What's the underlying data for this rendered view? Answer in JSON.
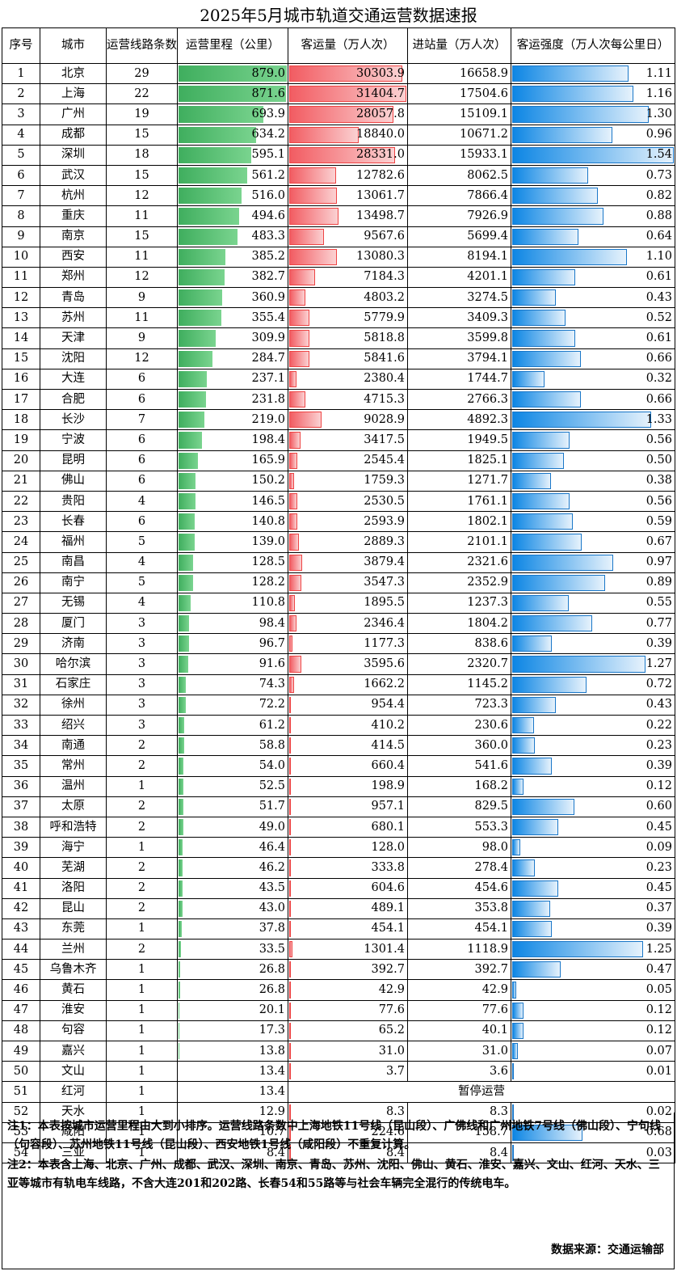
{
  "title": "2025年5月城市轨道交通运营数据速报",
  "headers": {
    "idx": "序号",
    "city": "城市",
    "lines": "运营线路条数",
    "mileage": "运营里程（公里）",
    "ridership": "客运量（万人次）",
    "entries": "进站量（万人次）",
    "intensity": "客运强度（万人次每公里日）"
  },
  "colors": {
    "mileage_bar": "#3fae5e",
    "ridership_bar": "#f25c62",
    "intensity_bar": "#0d86e4"
  },
  "scale": {
    "mileage_max": 879.0,
    "ridership_max": 31404.7,
    "intensity_max": 1.54
  },
  "rows": [
    {
      "idx": "1",
      "city": "北京",
      "lines": "29",
      "mileage": "879.0",
      "ridership": "30303.9",
      "entries": "16658.9",
      "intensity": "1.11"
    },
    {
      "idx": "2",
      "city": "上海",
      "lines": "22",
      "mileage": "871.6",
      "ridership": "31404.7",
      "entries": "17504.6",
      "intensity": "1.16"
    },
    {
      "idx": "3",
      "city": "广州",
      "lines": "19",
      "mileage": "693.9",
      "ridership": "28057.8",
      "entries": "15109.1",
      "intensity": "1.30"
    },
    {
      "idx": "4",
      "city": "成都",
      "lines": "15",
      "mileage": "634.2",
      "ridership": "18840.0",
      "entries": "10671.2",
      "intensity": "0.96"
    },
    {
      "idx": "5",
      "city": "深圳",
      "lines": "18",
      "mileage": "595.1",
      "ridership": "28331.0",
      "entries": "15933.1",
      "intensity": "1.54"
    },
    {
      "idx": "6",
      "city": "武汉",
      "lines": "15",
      "mileage": "561.2",
      "ridership": "12782.6",
      "entries": "8062.5",
      "intensity": "0.73"
    },
    {
      "idx": "7",
      "city": "杭州",
      "lines": "12",
      "mileage": "516.0",
      "ridership": "13061.7",
      "entries": "7866.4",
      "intensity": "0.82"
    },
    {
      "idx": "8",
      "city": "重庆",
      "lines": "11",
      "mileage": "494.6",
      "ridership": "13498.7",
      "entries": "7926.9",
      "intensity": "0.88"
    },
    {
      "idx": "9",
      "city": "南京",
      "lines": "15",
      "mileage": "483.3",
      "ridership": "9567.6",
      "entries": "5699.4",
      "intensity": "0.64"
    },
    {
      "idx": "10",
      "city": "西安",
      "lines": "11",
      "mileage": "385.2",
      "ridership": "13080.3",
      "entries": "8194.1",
      "intensity": "1.10"
    },
    {
      "idx": "11",
      "city": "郑州",
      "lines": "12",
      "mileage": "382.7",
      "ridership": "7184.3",
      "entries": "4201.1",
      "intensity": "0.61"
    },
    {
      "idx": "12",
      "city": "青岛",
      "lines": "9",
      "mileage": "360.9",
      "ridership": "4803.2",
      "entries": "3274.5",
      "intensity": "0.43"
    },
    {
      "idx": "13",
      "city": "苏州",
      "lines": "11",
      "mileage": "355.4",
      "ridership": "5779.9",
      "entries": "3409.3",
      "intensity": "0.52"
    },
    {
      "idx": "14",
      "city": "天津",
      "lines": "9",
      "mileage": "309.9",
      "ridership": "5818.8",
      "entries": "3599.8",
      "intensity": "0.61"
    },
    {
      "idx": "15",
      "city": "沈阳",
      "lines": "12",
      "mileage": "284.7",
      "ridership": "5841.6",
      "entries": "3794.1",
      "intensity": "0.66"
    },
    {
      "idx": "16",
      "city": "大连",
      "lines": "6",
      "mileage": "237.1",
      "ridership": "2380.4",
      "entries": "1744.7",
      "intensity": "0.32"
    },
    {
      "idx": "17",
      "city": "合肥",
      "lines": "6",
      "mileage": "231.8",
      "ridership": "4715.3",
      "entries": "2766.3",
      "intensity": "0.66"
    },
    {
      "idx": "18",
      "city": "长沙",
      "lines": "7",
      "mileage": "219.0",
      "ridership": "9028.9",
      "entries": "4892.3",
      "intensity": "1.33"
    },
    {
      "idx": "19",
      "city": "宁波",
      "lines": "6",
      "mileage": "198.4",
      "ridership": "3417.5",
      "entries": "1949.5",
      "intensity": "0.56"
    },
    {
      "idx": "20",
      "city": "昆明",
      "lines": "6",
      "mileage": "165.9",
      "ridership": "2545.4",
      "entries": "1825.1",
      "intensity": "0.50"
    },
    {
      "idx": "21",
      "city": "佛山",
      "lines": "6",
      "mileage": "150.2",
      "ridership": "1759.3",
      "entries": "1271.7",
      "intensity": "0.38"
    },
    {
      "idx": "22",
      "city": "贵阳",
      "lines": "4",
      "mileage": "146.5",
      "ridership": "2530.5",
      "entries": "1761.1",
      "intensity": "0.56"
    },
    {
      "idx": "23",
      "city": "长春",
      "lines": "6",
      "mileage": "140.8",
      "ridership": "2593.9",
      "entries": "1802.1",
      "intensity": "0.59"
    },
    {
      "idx": "24",
      "city": "福州",
      "lines": "5",
      "mileage": "139.0",
      "ridership": "2889.3",
      "entries": "2101.1",
      "intensity": "0.67"
    },
    {
      "idx": "25",
      "city": "南昌",
      "lines": "4",
      "mileage": "128.5",
      "ridership": "3879.4",
      "entries": "2321.6",
      "intensity": "0.97"
    },
    {
      "idx": "26",
      "city": "南宁",
      "lines": "5",
      "mileage": "128.2",
      "ridership": "3547.3",
      "entries": "2352.9",
      "intensity": "0.89"
    },
    {
      "idx": "27",
      "city": "无锡",
      "lines": "4",
      "mileage": "110.8",
      "ridership": "1895.5",
      "entries": "1237.3",
      "intensity": "0.55"
    },
    {
      "idx": "28",
      "city": "厦门",
      "lines": "3",
      "mileage": "98.4",
      "ridership": "2346.4",
      "entries": "1804.2",
      "intensity": "0.77"
    },
    {
      "idx": "29",
      "city": "济南",
      "lines": "3",
      "mileage": "96.7",
      "ridership": "1177.3",
      "entries": "838.6",
      "intensity": "0.39"
    },
    {
      "idx": "30",
      "city": "哈尔滨",
      "lines": "3",
      "mileage": "91.6",
      "ridership": "3595.6",
      "entries": "2320.7",
      "intensity": "1.27"
    },
    {
      "idx": "31",
      "city": "石家庄",
      "lines": "3",
      "mileage": "74.3",
      "ridership": "1662.2",
      "entries": "1145.2",
      "intensity": "0.72"
    },
    {
      "idx": "32",
      "city": "徐州",
      "lines": "3",
      "mileage": "72.2",
      "ridership": "954.4",
      "entries": "723.3",
      "intensity": "0.43"
    },
    {
      "idx": "33",
      "city": "绍兴",
      "lines": "3",
      "mileage": "61.2",
      "ridership": "410.2",
      "entries": "230.6",
      "intensity": "0.22"
    },
    {
      "idx": "34",
      "city": "南通",
      "lines": "2",
      "mileage": "58.8",
      "ridership": "414.5",
      "entries": "360.0",
      "intensity": "0.23"
    },
    {
      "idx": "35",
      "city": "常州",
      "lines": "2",
      "mileage": "54.0",
      "ridership": "660.4",
      "entries": "541.6",
      "intensity": "0.39"
    },
    {
      "idx": "36",
      "city": "温州",
      "lines": "1",
      "mileage": "52.5",
      "ridership": "198.9",
      "entries": "168.2",
      "intensity": "0.12"
    },
    {
      "idx": "37",
      "city": "太原",
      "lines": "2",
      "mileage": "51.7",
      "ridership": "957.1",
      "entries": "829.5",
      "intensity": "0.60"
    },
    {
      "idx": "38",
      "city": "呼和浩特",
      "lines": "2",
      "mileage": "49.0",
      "ridership": "680.1",
      "entries": "553.3",
      "intensity": "0.45"
    },
    {
      "idx": "39",
      "city": "海宁",
      "lines": "1",
      "mileage": "46.4",
      "ridership": "128.0",
      "entries": "98.0",
      "intensity": "0.09"
    },
    {
      "idx": "40",
      "city": "芜湖",
      "lines": "2",
      "mileage": "46.2",
      "ridership": "333.8",
      "entries": "278.4",
      "intensity": "0.23"
    },
    {
      "idx": "41",
      "city": "洛阳",
      "lines": "2",
      "mileage": "43.5",
      "ridership": "604.6",
      "entries": "454.6",
      "intensity": "0.45"
    },
    {
      "idx": "42",
      "city": "昆山",
      "lines": "2",
      "mileage": "43.0",
      "ridership": "489.1",
      "entries": "353.8",
      "intensity": "0.37"
    },
    {
      "idx": "43",
      "city": "东莞",
      "lines": "1",
      "mileage": "37.8",
      "ridership": "454.1",
      "entries": "454.1",
      "intensity": "0.39"
    },
    {
      "idx": "44",
      "city": "兰州",
      "lines": "2",
      "mileage": "33.5",
      "ridership": "1301.4",
      "entries": "1118.9",
      "intensity": "1.25"
    },
    {
      "idx": "45",
      "city": "乌鲁木齐",
      "lines": "1",
      "mileage": "26.8",
      "ridership": "392.7",
      "entries": "392.7",
      "intensity": "0.47"
    },
    {
      "idx": "46",
      "city": "黄石",
      "lines": "1",
      "mileage": "26.8",
      "ridership": "42.9",
      "entries": "42.9",
      "intensity": "0.05"
    },
    {
      "idx": "47",
      "city": "淮安",
      "lines": "1",
      "mileage": "20.1",
      "ridership": "77.6",
      "entries": "77.6",
      "intensity": "0.12"
    },
    {
      "idx": "48",
      "city": "句容",
      "lines": "1",
      "mileage": "17.3",
      "ridership": "65.2",
      "entries": "40.1",
      "intensity": "0.12"
    },
    {
      "idx": "49",
      "city": "嘉兴",
      "lines": "1",
      "mileage": "13.8",
      "ridership": "31.0",
      "entries": "31.0",
      "intensity": "0.07"
    },
    {
      "idx": "50",
      "city": "文山",
      "lines": "1",
      "mileage": "13.4",
      "ridership": "3.7",
      "entries": "3.6",
      "intensity": "0.01"
    },
    {
      "idx": "51",
      "city": "红河",
      "lines": "1",
      "mileage": "13.4",
      "suspended": "暂停运营"
    },
    {
      "idx": "52",
      "city": "天水",
      "lines": "1",
      "mileage": "12.9",
      "ridership": "8.3",
      "entries": "8.3",
      "intensity": "0.02"
    },
    {
      "idx": "53",
      "city": "咸阳",
      "lines": "1",
      "mileage": "10.7",
      "ridership": "224.6",
      "entries": "158.7",
      "intensity": "0.68"
    },
    {
      "idx": "54",
      "city": "三亚",
      "lines": "1",
      "mileage": "8.4",
      "ridership": "8.4",
      "entries": "8.4",
      "intensity": "0.03"
    }
  ],
  "notes": {
    "note1": "注1：本表按城市运营里程由大到小排序。运营线路条数中上海地铁11号线（昆山段）、广佛线和广州地铁7号线（佛山段）、宁句线（句容段）、苏州地铁11号线（昆山段）、西安地铁1号线（咸阳段）不重复计算。",
    "note2": "注2：本表含上海、北京、广州、成都、武汉、深圳、南京、青岛、苏州、沈阳、佛山、黄石、淮安、嘉兴、文山、红河、天水、三亚等城市有轨电车线路，不含大连201和202路、长春54和55路等与社会车辆完全混行的传统电车。",
    "source": "数据来源：交通运输部"
  }
}
